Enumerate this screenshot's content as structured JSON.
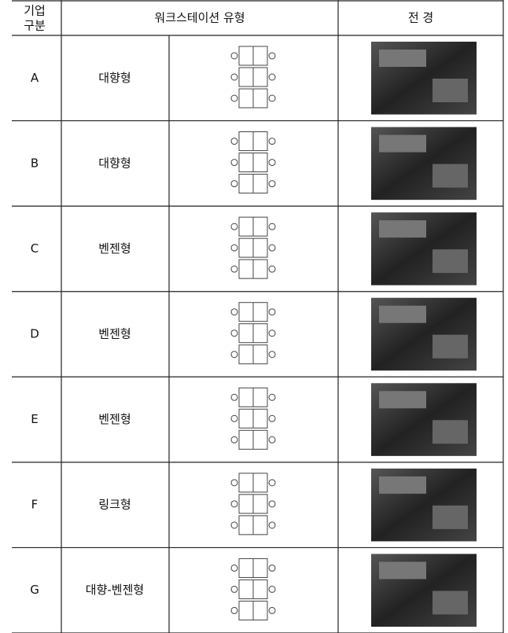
{
  "header": {
    "company": [
      "기업",
      "구분"
    ],
    "workstation_type": "워크스테이션 유형",
    "view": "전 경"
  },
  "rows": [
    {
      "id": "A",
      "type": "대향형"
    },
    {
      "id": "B",
      "type": "대향형"
    },
    {
      "id": "C",
      "type": "벤젠형"
    },
    {
      "id": "D",
      "type": "벤젠형"
    },
    {
      "id": "E",
      "type": "벤젠형"
    },
    {
      "id": "F",
      "type": "링크형"
    },
    {
      "id": "G",
      "type": "대향-벤젠형"
    }
  ]
}
